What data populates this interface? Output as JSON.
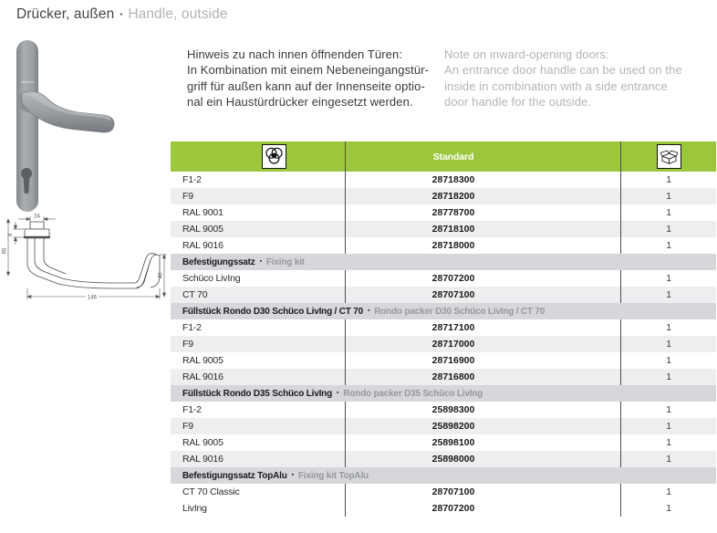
{
  "page": {
    "title_de": "Drücker, außen",
    "title_en": "Handle, outside",
    "bullet": "▪"
  },
  "note": {
    "de": {
      "line0": "Hinweis zu nach innen öffnenden Türen:",
      "line1": "In Kombination mit einem Nebeneingangstür-",
      "line2": "griff für außen kann auf der Innenseite optio-",
      "line3": "nal ein Haustürdrücker eingesetzt werden."
    },
    "en": {
      "line0": "Note on inward-opening doors:",
      "line1": "An entrance door handle can be used on the",
      "line2": "inside in combination with a side entrance",
      "line3": "door handle for the outside."
    }
  },
  "illustration": {
    "brand_on_plate": "Schüco",
    "drawing_dims": {
      "hub_width": "24",
      "neck_depth": "8",
      "height_left": "65",
      "length": "146",
      "height_right": "40"
    }
  },
  "table": {
    "colors": {
      "header_green": "#9cc73c",
      "section_band": "#d5d7db",
      "alt_row": "#eeeef1"
    },
    "header": {
      "col1_icon": "colour-variants-icon",
      "col2_label": "Standard",
      "col3_icon": "packaging-unit-icon"
    },
    "rows": [
      {
        "type": "item",
        "label": "F1-2",
        "article": "28718300",
        "qty": "1",
        "alt": false
      },
      {
        "type": "item",
        "label": "F9",
        "article": "28718200",
        "qty": "1",
        "alt": true
      },
      {
        "type": "item",
        "label": "RAL 9001",
        "article": "28778700",
        "qty": "1",
        "alt": false
      },
      {
        "type": "item",
        "label": "RAL 9005",
        "article": "28718100",
        "qty": "1",
        "alt": true
      },
      {
        "type": "item",
        "label": "RAL 9016",
        "article": "28718000",
        "qty": "1",
        "alt": false
      },
      {
        "type": "section",
        "de": "Befestigungssatz",
        "en": "Fixing kit"
      },
      {
        "type": "item",
        "label": "Schüco LivIng",
        "article": "28707200",
        "qty": "1",
        "alt": false
      },
      {
        "type": "item",
        "label": "CT 70",
        "article": "28707100",
        "qty": "1",
        "alt": true
      },
      {
        "type": "section",
        "de": "Füllstück Rondo  D30 Schüco LivIng / CT 70",
        "en": "Rondo packer D30 Schüco LivIng / CT 70"
      },
      {
        "type": "item",
        "label": "F1-2",
        "article": "28717100",
        "qty": "1",
        "alt": false
      },
      {
        "type": "item",
        "label": "F9",
        "article": "28717000",
        "qty": "1",
        "alt": true
      },
      {
        "type": "item",
        "label": "RAL 9005",
        "article": "28716900",
        "qty": "1",
        "alt": false
      },
      {
        "type": "item",
        "label": "RAL 9016",
        "article": "28716800",
        "qty": "1",
        "alt": true
      },
      {
        "type": "section",
        "de": "Füllstück Rondo  D35 Schüco LivIng",
        "en": "Rondo packer D35 Schüco LivIng"
      },
      {
        "type": "item",
        "label": "F1-2",
        "article": "25898300",
        "qty": "1",
        "alt": false
      },
      {
        "type": "item",
        "label": "F9",
        "article": "25898200",
        "qty": "1",
        "alt": true
      },
      {
        "type": "item",
        "label": "RAL 9005",
        "article": "25898100",
        "qty": "1",
        "alt": false
      },
      {
        "type": "item",
        "label": "RAL 9016",
        "article": "25898000",
        "qty": "1",
        "alt": true
      },
      {
        "type": "section",
        "de": "Befestigungssatz TopAlu",
        "en": "Fixing kit TopAlu"
      },
      {
        "type": "item",
        "label": "CT 70 Classic",
        "article": "28707100",
        "qty": "1",
        "alt": false
      },
      {
        "type": "item",
        "label": "LivIng",
        "article": "28707200",
        "qty": "1",
        "alt": false
      }
    ]
  }
}
